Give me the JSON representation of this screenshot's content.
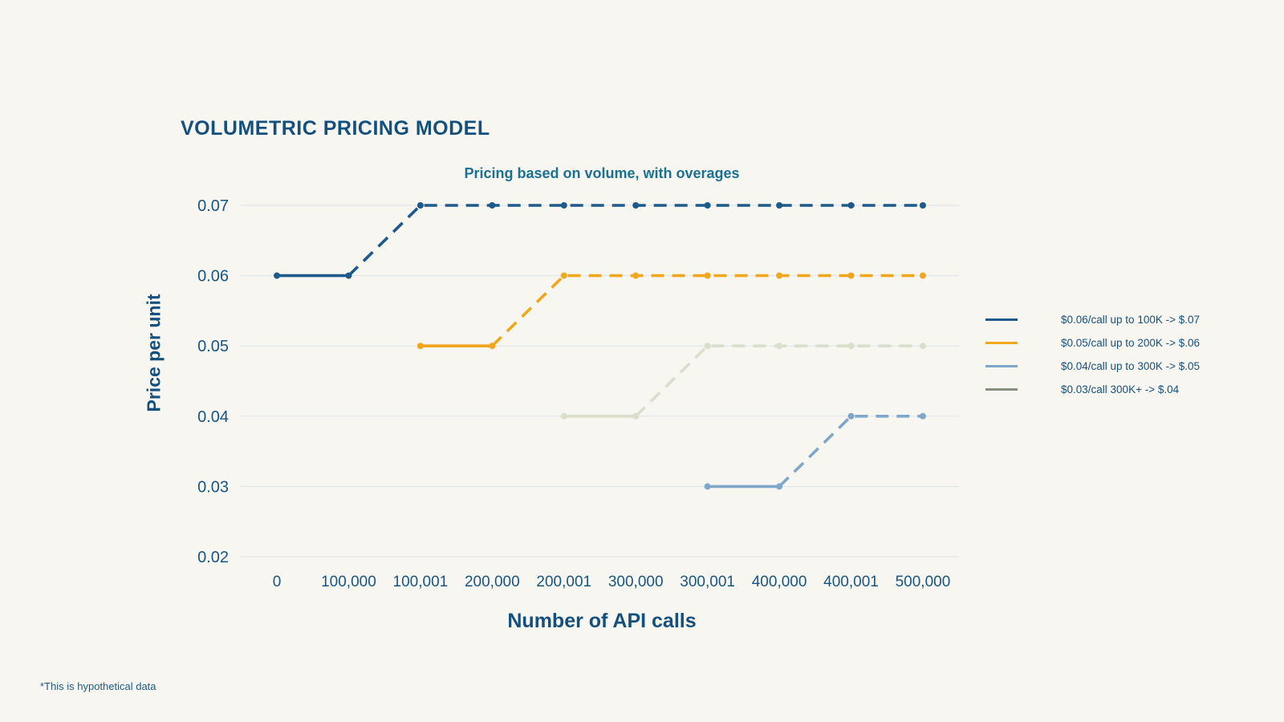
{
  "page": {
    "title": "VOLUMETRIC PRICING MODEL",
    "footnote": "*This is hypothetical data"
  },
  "colors": {
    "background": "#f8f6f0",
    "text": "#14507e",
    "tick_text": "#175684",
    "subtitle": "#1b7191",
    "gridline": "#dbe3eb"
  },
  "chart_data": {
    "type": "line",
    "title": "VOLUMETRIC PRICING MODEL",
    "subtitle": "Pricing based on volume, with overages",
    "xlabel": "Number of API calls",
    "ylabel": "Price per unit",
    "categories": [
      "0",
      "100,000",
      "100,001",
      "200,000",
      "200,001",
      "300,000",
      "300,001",
      "400,000",
      "400,001",
      "500,000"
    ],
    "yticks": [
      "0.07",
      "0.06",
      "0.05",
      "0.04",
      "0.03",
      "0.02"
    ],
    "ylim": [
      0.02,
      0.07
    ],
    "grid": true,
    "line_style_note": "each tier is solid over its included volume, then dashed for overage",
    "series": [
      {
        "name": "$0.06/call up to 100K -> $.07",
        "color": "#1b5a8a",
        "start_index": 0,
        "solid_points": 2,
        "values": [
          0.06,
          0.06,
          0.07,
          0.07,
          0.07,
          0.07,
          0.07,
          0.07,
          0.07,
          0.07
        ]
      },
      {
        "name": "$0.05/call up to 200K -> $.06",
        "color": "#f0a61d",
        "start_index": 2,
        "solid_points": 2,
        "values": [
          0.05,
          0.05,
          0.06,
          0.06,
          0.06,
          0.06,
          0.06,
          0.06
        ]
      },
      {
        "name": "$0.04/call up to 300K -> $.05",
        "color": "#d9dfca",
        "start_index": 4,
        "solid_points": 2,
        "values": [
          0.04,
          0.04,
          0.05,
          0.05,
          0.05,
          0.05
        ]
      },
      {
        "name": "$0.03/call 300K+ -> $.04",
        "color": "#7fa7c9",
        "start_index": 6,
        "solid_points": 2,
        "values": [
          0.03,
          0.03,
          0.04,
          0.04
        ]
      }
    ],
    "legend": {
      "position": "right",
      "items": [
        {
          "label": "$0.06/call up to 100K -> $.07",
          "color": "#1b5a8a"
        },
        {
          "label": "$0.05/call up to 200K -> $.06",
          "color": "#f0a61d"
        },
        {
          "label": "$0.04/call up to 300K -> $.05",
          "color": "#7fa7c9"
        },
        {
          "label": "$0.03/call 300K+ -> $.04",
          "color": "#87907d"
        }
      ]
    }
  }
}
